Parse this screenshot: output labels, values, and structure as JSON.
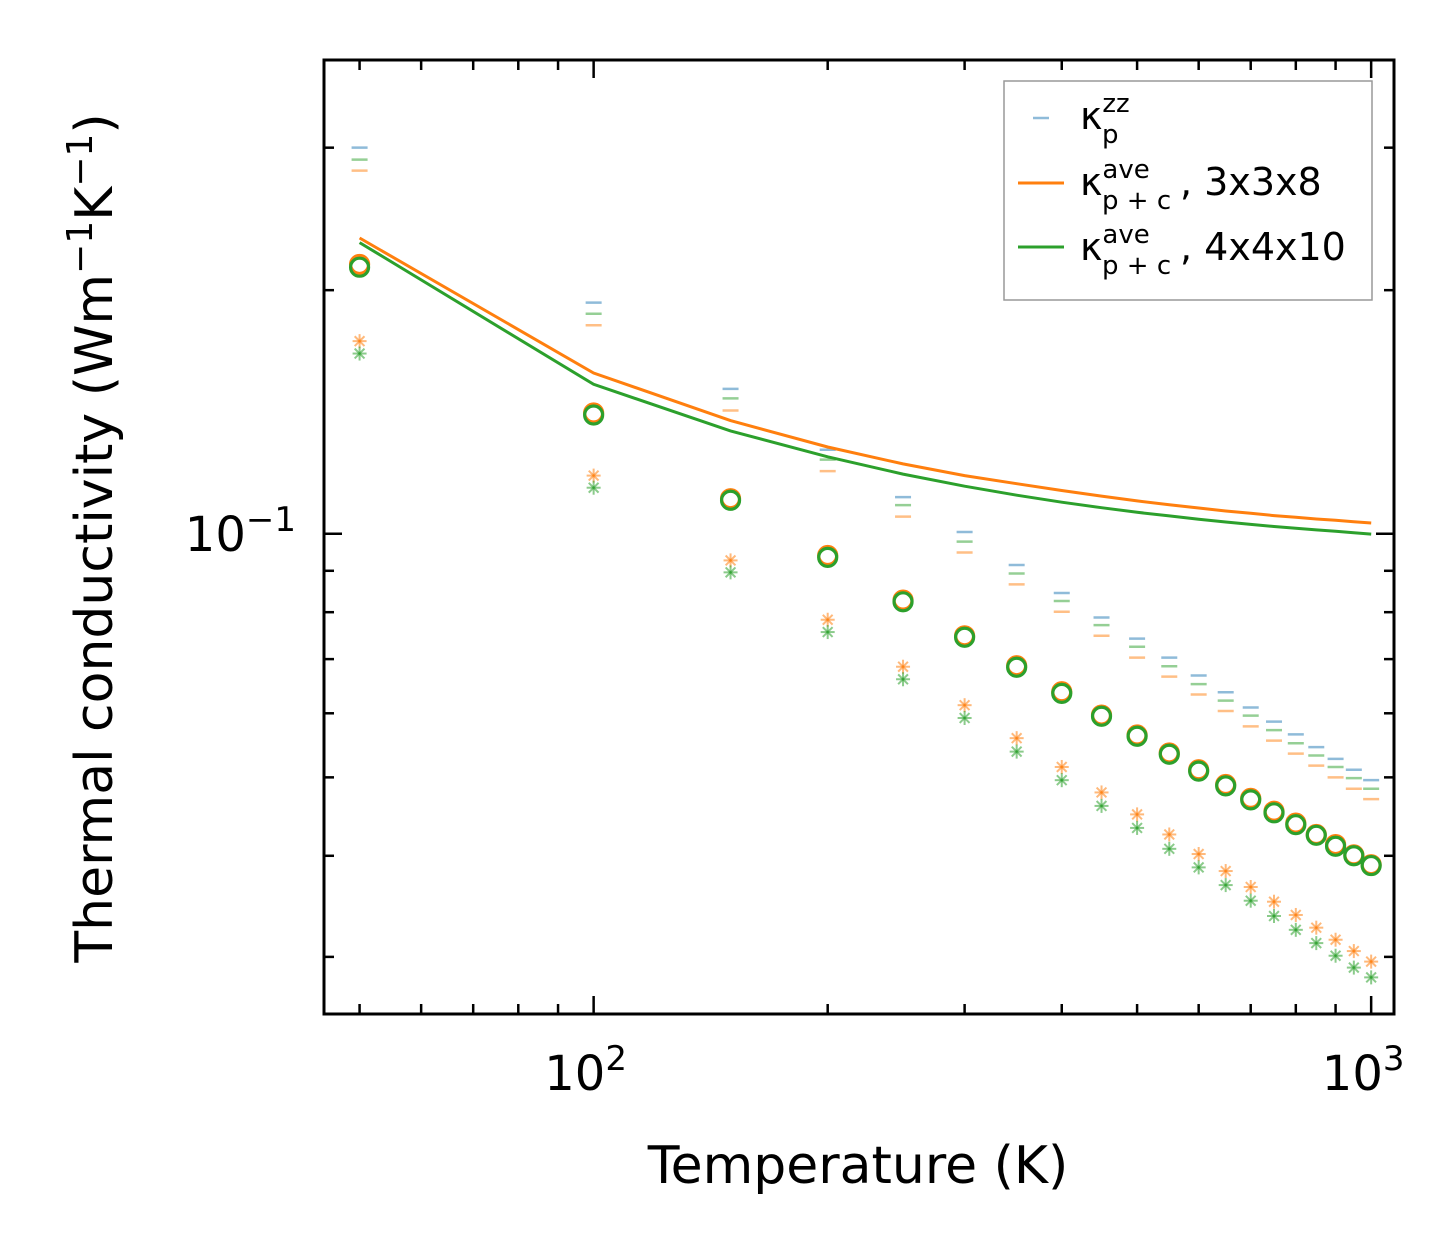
{
  "chart_data": {
    "type": "scatter",
    "xscale": "log",
    "yscale": "log",
    "xlabel": "Temperature (K)",
    "ylabel_main": "Thermal conductivity (Wm",
    "ylabel_sup1": "−1",
    "ylabel_mid": "K",
    "ylabel_sup2": "−1",
    "ylabel_end": ")",
    "xlim": [
      45,
      1070
    ],
    "ylim": [
      0.0255,
      0.385
    ],
    "x_ticks": [
      {
        "base": "10",
        "exp": "2",
        "value": 100
      },
      {
        "base": "10",
        "exp": "3",
        "value": 1000
      }
    ],
    "y_ticks": [
      {
        "base": "10",
        "exp": "−1",
        "value": 0.1
      }
    ],
    "x": [
      50,
      100,
      150,
      200,
      250,
      300,
      350,
      400,
      450,
      500,
      550,
      600,
      650,
      700,
      750,
      800,
      850,
      900,
      950,
      1000
    ],
    "legend": {
      "position": "top-right",
      "entries": [
        {
          "sym": "κ",
          "sup": "zz",
          "sub": "p",
          "suffix": "",
          "color": "#1f77b4",
          "style": "dash-marker"
        },
        {
          "sym": "κ",
          "sup": "ave",
          "sub": "p + c",
          "suffix": ", 3x3x8",
          "color": "#ff7f0e",
          "style": "line"
        },
        {
          "sym": "κ",
          "sup": "ave",
          "sub": "p + c",
          "suffix": ", 4x4x10",
          "color": "#2ca02c",
          "style": "line"
        }
      ]
    },
    "series": [
      {
        "name": "kappa_pc_ave_3x3x8",
        "kind": "line",
        "color": "#ff7f0e",
        "values": [
          0.232,
          0.158,
          0.138,
          0.128,
          0.122,
          0.118,
          0.1153,
          0.1131,
          0.1113,
          0.1098,
          0.1086,
          0.1076,
          0.1067,
          0.106,
          0.1053,
          0.1048,
          0.1043,
          0.1039,
          0.1035,
          0.1031
        ]
      },
      {
        "name": "kappa_pc_ave_4x4x10",
        "kind": "line",
        "color": "#2ca02c",
        "values": [
          0.229,
          0.153,
          0.134,
          0.1245,
          0.1185,
          0.1145,
          0.1116,
          0.1094,
          0.1077,
          0.1063,
          0.1052,
          0.1042,
          0.1034,
          0.1027,
          0.1021,
          0.1016,
          0.1011,
          0.1007,
          0.1003,
          0.0999
        ]
      },
      {
        "name": "circle_3x3x8",
        "kind": "circle",
        "color": "#ff7f0e",
        "values": [
          0.2152,
          0.141,
          0.1105,
          0.094,
          0.0828,
          0.0748,
          0.0687,
          0.0638,
          0.0597,
          0.0564,
          0.0536,
          0.0511,
          0.049,
          0.0471,
          0.0454,
          0.0439,
          0.0425,
          0.0413,
          0.0401,
          0.039
        ]
      },
      {
        "name": "circle_4x4x10",
        "kind": "circle",
        "color": "#2ca02c",
        "values": [
          0.2135,
          0.1402,
          0.11,
          0.0935,
          0.0824,
          0.0745,
          0.0684,
          0.0635,
          0.0595,
          0.0562,
          0.0534,
          0.0509,
          0.0488,
          0.0469,
          0.0452,
          0.0437,
          0.0424,
          0.0411,
          0.04,
          0.0389
        ]
      },
      {
        "name": "star_3x3x8",
        "kind": "star",
        "color": "#ff7f0e",
        "values": [
          0.173,
          0.118,
          0.0927,
          0.0783,
          0.0685,
          0.0614,
          0.0559,
          0.0515,
          0.0479,
          0.045,
          0.0425,
          0.0402,
          0.0383,
          0.0366,
          0.0351,
          0.0338,
          0.0326,
          0.0315,
          0.0305,
          0.0296
        ]
      },
      {
        "name": "star_4x4x10",
        "kind": "star",
        "color": "#2ca02c",
        "values": [
          0.167,
          0.114,
          0.0896,
          0.0756,
          0.0661,
          0.0592,
          0.0538,
          0.0496,
          0.0461,
          0.0433,
          0.0408,
          0.0387,
          0.0368,
          0.0352,
          0.0337,
          0.0324,
          0.0312,
          0.0301,
          0.0291,
          0.0283
        ]
      },
      {
        "name": "kappa_p_zz_blue",
        "kind": "dash",
        "color": "#1f77b4",
        "values": [
          0.3,
          0.193,
          0.151,
          0.127,
          0.111,
          0.1005,
          0.0915,
          0.0845,
          0.0788,
          0.0742,
          0.0703,
          0.0668,
          0.0637,
          0.061,
          0.0586,
          0.0565,
          0.0545,
          0.0527,
          0.0511,
          0.0496
        ]
      },
      {
        "name": "kappa_p_zz_green",
        "kind": "dash",
        "color": "#2ca02c",
        "values": [
          0.29,
          0.187,
          0.147,
          0.1235,
          0.1085,
          0.0978,
          0.0893,
          0.0826,
          0.0771,
          0.0725,
          0.0686,
          0.0652,
          0.0622,
          0.0596,
          0.0572,
          0.0551,
          0.0532,
          0.0515,
          0.0499,
          0.0484
        ]
      },
      {
        "name": "kappa_p_zz_orange",
        "kind": "dash",
        "color": "#ff7f0e",
        "values": [
          0.281,
          0.181,
          0.142,
          0.1195,
          0.105,
          0.0948,
          0.0866,
          0.0801,
          0.0748,
          0.0703,
          0.0666,
          0.0633,
          0.0604,
          0.0578,
          0.0555,
          0.0535,
          0.0517,
          0.05,
          0.0484,
          0.047
        ]
      }
    ]
  }
}
